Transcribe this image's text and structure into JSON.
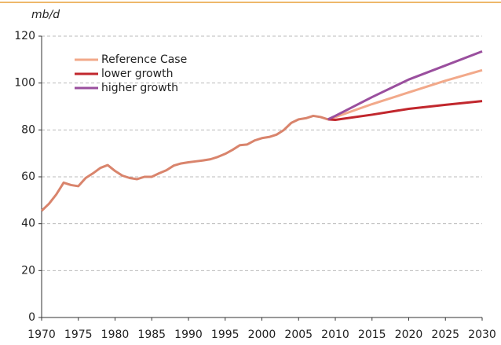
{
  "chart_data": {
    "type": "line",
    "y_label": "mb/d",
    "xlim": [
      1970,
      2030
    ],
    "xticks": [
      1970,
      1975,
      1980,
      1985,
      1990,
      1995,
      2000,
      2005,
      2010,
      2015,
      2020,
      2025,
      2030
    ],
    "ylim": [
      0,
      120
    ],
    "yticks": [
      0,
      20,
      40,
      60,
      80,
      100,
      120
    ],
    "grid": true,
    "legend": "upper left",
    "series": [
      {
        "color": "#d9846c",
        "x": [
          1970,
          1971,
          1972,
          1973,
          1974,
          1975,
          1976,
          1977,
          1978,
          1979,
          1980,
          1981,
          1982,
          1983,
          1984,
          1985,
          1986,
          1987,
          1988,
          1989,
          1990,
          1991,
          1992,
          1993,
          1994,
          1995,
          1996,
          1997,
          1998,
          1999,
          2000,
          2001,
          2002,
          2003,
          2004,
          2005,
          2006,
          2007,
          2008,
          2009
        ],
        "values": [
          45.5,
          48.5,
          52.5,
          57.5,
          56.5,
          56,
          59.5,
          61.5,
          63.8,
          65,
          62.5,
          60.5,
          59.5,
          59,
          60,
          60,
          61.5,
          62.8,
          64.8,
          65.7,
          66.2,
          66.6,
          67,
          67.5,
          68.5,
          69.8,
          71.5,
          73.5,
          73.8,
          75.5,
          76.5,
          77,
          78,
          80,
          83,
          84.5,
          85,
          86,
          85.5,
          84.5
        ]
      },
      {
        "name": "Reference Case",
        "color": "#f2a98a",
        "x": [
          2009,
          2010,
          2015,
          2020,
          2025,
          2030
        ],
        "values": [
          84.5,
          85.5,
          91,
          96,
          101,
          105.5
        ]
      },
      {
        "name": "lower growth",
        "color": "#c1272d",
        "x": [
          2009,
          2010,
          2015,
          2020,
          2025,
          2030
        ],
        "values": [
          84.5,
          84.3,
          86.5,
          89,
          90.7,
          92.3
        ]
      },
      {
        "name": "higher growth",
        "color": "#9a4f9e",
        "x": [
          2009,
          2010,
          2015,
          2020,
          2025,
          2030
        ],
        "values": [
          84.5,
          86,
          94,
          101.5,
          107.5,
          113.5
        ]
      }
    ]
  }
}
